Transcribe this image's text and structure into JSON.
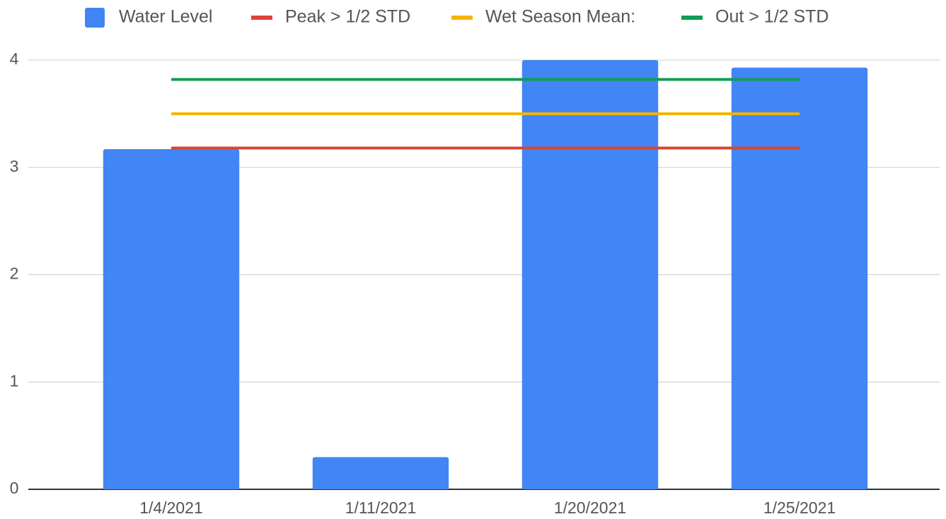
{
  "chart_data": {
    "type": "bar",
    "categories": [
      "1/4/2021",
      "1/11/2021",
      "1/20/2021",
      "1/25/2021"
    ],
    "series": [
      {
        "name": "Water Level",
        "type": "bar",
        "color": "#4285f4",
        "values": [
          3.17,
          0.3,
          4.0,
          3.93
        ]
      },
      {
        "name": "Peak > 1/2 STD",
        "type": "line",
        "color": "#db4437",
        "values": [
          3.18,
          3.18,
          3.18,
          3.18
        ]
      },
      {
        "name": "Wet Season Mean:",
        "type": "line",
        "color": "#f4b400",
        "values": [
          3.5,
          3.5,
          3.5,
          3.5
        ]
      },
      {
        "name": "Out > 1/2 STD",
        "type": "line",
        "color": "#0f9d58",
        "values": [
          3.82,
          3.82,
          3.82,
          3.82
        ]
      }
    ],
    "ylim": [
      0,
      4
    ],
    "yticks": [
      0,
      1,
      2,
      3,
      4
    ],
    "grid": true,
    "legend": "top"
  }
}
